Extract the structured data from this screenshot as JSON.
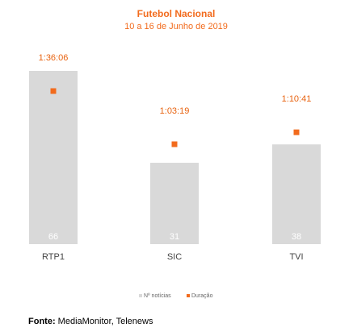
{
  "chart_data": {
    "type": "bar",
    "title": "Futebol Nacional",
    "subtitle": "10 a 16 de Junho de 2019",
    "categories": [
      "RTP1",
      "SIC",
      "TVI"
    ],
    "series": [
      {
        "name": "Nº notícias",
        "kind": "bar",
        "values": [
          66,
          31,
          38
        ],
        "color": "#d9d9d9",
        "label_color": "#ffffff"
      },
      {
        "name": "Duração",
        "kind": "marker",
        "values": [
          "1:36:06",
          "1:03:19",
          "1:10:41"
        ],
        "seconds": [
          5766,
          3799,
          4241
        ],
        "color": "#f26b1d"
      }
    ],
    "legend_position": "bottom",
    "grid": false
  },
  "source": {
    "label": "Fonte:",
    "text": "MediaMonitor, Telenews"
  }
}
